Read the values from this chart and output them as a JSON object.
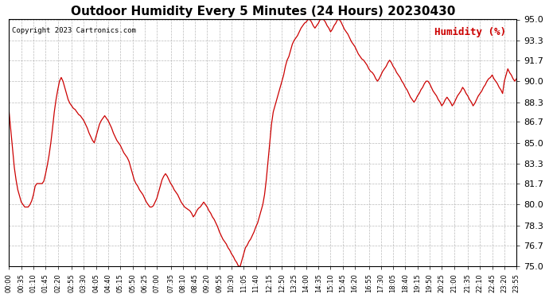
{
  "title": "Outdoor Humidity Every 5 Minutes (24 Hours) 20230430",
  "copyright": "Copyright 2023 Cartronics.com",
  "legend_label": "Humidity (%)",
  "legend_color": "#cc0000",
  "line_color": "#cc0000",
  "background_color": "#ffffff",
  "grid_color": "#aaaaaa",
  "ylim": [
    75.0,
    95.0
  ],
  "yticks": [
    75.0,
    76.7,
    78.3,
    80.0,
    81.7,
    83.3,
    85.0,
    86.7,
    88.3,
    90.0,
    91.7,
    93.3,
    95.0
  ],
  "humidity_values": [
    87.5,
    86.0,
    84.5,
    83.0,
    82.0,
    81.2,
    80.7,
    80.2,
    80.0,
    79.8,
    79.8,
    79.8,
    80.0,
    80.3,
    80.8,
    81.5,
    81.7,
    81.7,
    81.7,
    81.7,
    81.9,
    82.5,
    83.2,
    84.0,
    85.0,
    86.2,
    87.5,
    88.5,
    89.3,
    90.0,
    90.3,
    90.0,
    89.5,
    89.0,
    88.5,
    88.2,
    88.0,
    87.8,
    87.7,
    87.5,
    87.3,
    87.2,
    87.0,
    86.8,
    86.5,
    86.2,
    85.8,
    85.5,
    85.2,
    85.0,
    85.5,
    86.0,
    86.5,
    86.8,
    87.0,
    87.2,
    87.0,
    86.8,
    86.5,
    86.2,
    85.8,
    85.5,
    85.2,
    85.0,
    84.8,
    84.5,
    84.2,
    84.0,
    83.8,
    83.5,
    83.0,
    82.5,
    82.0,
    81.7,
    81.5,
    81.2,
    81.0,
    80.8,
    80.5,
    80.2,
    80.0,
    79.8,
    79.8,
    79.9,
    80.2,
    80.5,
    81.0,
    81.5,
    82.0,
    82.3,
    82.5,
    82.3,
    82.0,
    81.7,
    81.5,
    81.2,
    81.0,
    80.8,
    80.5,
    80.2,
    80.0,
    79.8,
    79.7,
    79.6,
    79.5,
    79.3,
    79.0,
    79.2,
    79.5,
    79.7,
    79.8,
    80.0,
    80.2,
    80.0,
    79.8,
    79.5,
    79.3,
    79.0,
    78.8,
    78.5,
    78.2,
    77.8,
    77.5,
    77.2,
    77.0,
    76.8,
    76.5,
    76.3,
    76.0,
    75.8,
    75.5,
    75.3,
    75.0,
    75.0,
    75.5,
    76.0,
    76.5,
    76.7,
    77.0,
    77.2,
    77.5,
    77.8,
    78.2,
    78.5,
    79.0,
    79.5,
    80.0,
    80.8,
    82.0,
    83.5,
    85.0,
    86.5,
    87.5,
    88.0,
    88.5,
    89.0,
    89.5,
    90.0,
    90.5,
    91.2,
    91.7,
    92.0,
    92.5,
    93.0,
    93.3,
    93.5,
    93.7,
    94.0,
    94.3,
    94.5,
    94.7,
    94.8,
    95.0,
    95.0,
    94.8,
    94.5,
    94.3,
    94.5,
    94.7,
    95.0,
    95.0,
    95.0,
    94.8,
    94.5,
    94.3,
    94.0,
    94.2,
    94.5,
    94.7,
    95.0,
    95.0,
    94.8,
    94.5,
    94.2,
    94.0,
    93.8,
    93.5,
    93.2,
    93.0,
    92.8,
    92.5,
    92.2,
    92.0,
    91.8,
    91.7,
    91.5,
    91.3,
    91.0,
    90.8,
    90.7,
    90.5,
    90.2,
    90.0,
    90.2,
    90.5,
    90.8,
    91.0,
    91.2,
    91.5,
    91.7,
    91.5,
    91.2,
    91.0,
    90.7,
    90.5,
    90.3,
    90.0,
    89.8,
    89.5,
    89.3,
    89.0,
    88.7,
    88.5,
    88.3,
    88.5,
    88.8,
    89.0,
    89.3,
    89.5,
    89.8,
    90.0,
    90.0,
    89.8,
    89.5,
    89.2,
    89.0,
    88.8,
    88.5,
    88.3,
    88.0,
    88.2,
    88.5,
    88.7,
    88.5,
    88.3,
    88.0,
    88.2,
    88.5,
    88.8,
    89.0,
    89.2,
    89.5,
    89.3,
    89.0,
    88.8,
    88.5,
    88.3,
    88.0,
    88.2,
    88.5,
    88.8,
    89.0,
    89.2,
    89.5,
    89.7,
    90.0,
    90.2,
    90.3,
    90.5,
    90.2,
    90.0,
    89.8,
    89.5,
    89.3,
    89.0,
    90.0,
    90.5,
    91.0,
    90.7,
    90.5,
    90.2,
    90.0,
    90.2
  ],
  "xtick_labels": [
    "00:00",
    "00:35",
    "01:10",
    "01:45",
    "02:20",
    "02:55",
    "03:30",
    "04:05",
    "04:40",
    "05:15",
    "05:50",
    "06:25",
    "07:00",
    "07:35",
    "08:10",
    "08:45",
    "09:20",
    "09:55",
    "10:30",
    "11:05",
    "11:40",
    "12:15",
    "12:50",
    "13:25",
    "14:00",
    "14:35",
    "15:10",
    "15:45",
    "16:20",
    "16:55",
    "17:30",
    "18:05",
    "18:40",
    "19:15",
    "19:50",
    "20:25",
    "21:00",
    "21:35",
    "22:10",
    "22:45",
    "23:20",
    "23:55"
  ],
  "title_fontsize": 11,
  "copyright_fontsize": 6.5,
  "ytick_fontsize": 8,
  "xtick_fontsize": 6
}
